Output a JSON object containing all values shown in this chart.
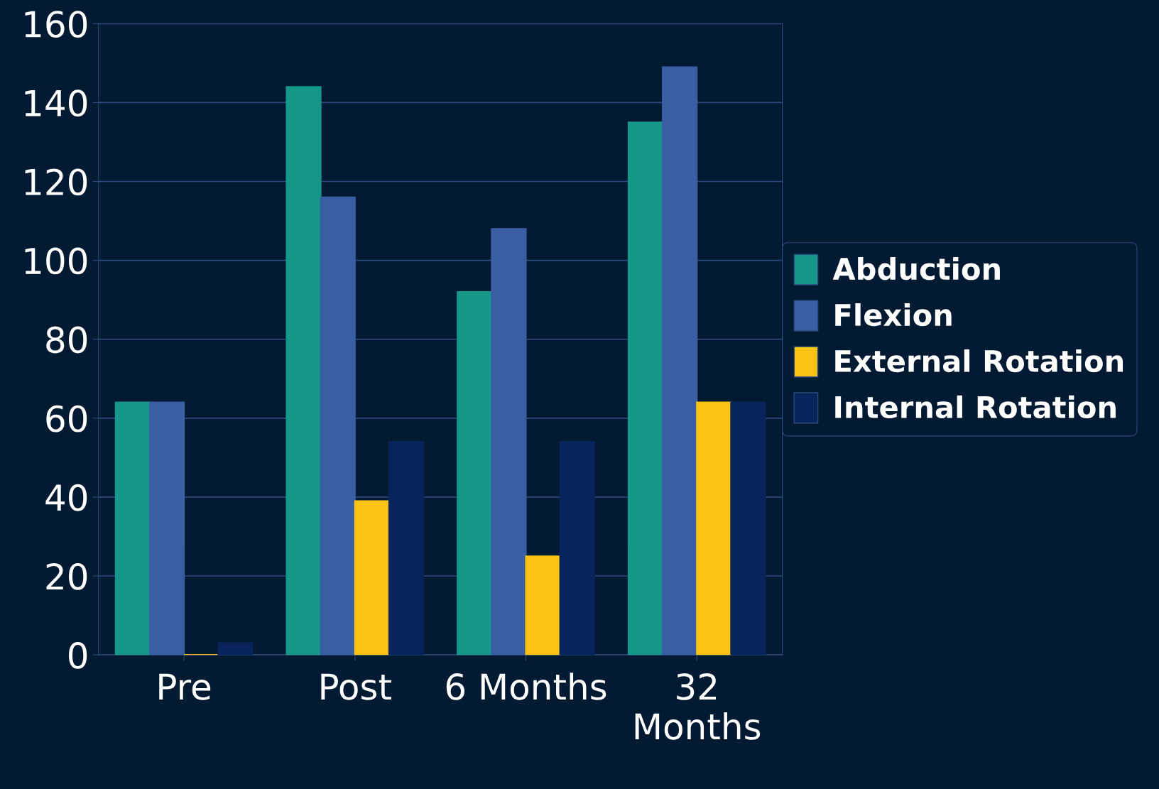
{
  "chart_data": {
    "type": "bar",
    "categories": [
      "Pre",
      "Post",
      "6 Months",
      "32\nMonths"
    ],
    "series": [
      {
        "name": "Abduction",
        "color": "#15978a",
        "values": [
          64,
          144,
          92,
          135
        ]
      },
      {
        "name": "Flexion",
        "color": "#3a5ea3",
        "values": [
          64,
          116,
          108,
          149
        ]
      },
      {
        "name": "External Rotation",
        "color": "#fcc314",
        "values": [
          0,
          39,
          25,
          64
        ]
      },
      {
        "name": "Internal Rotation",
        "color": "#08245a",
        "values": [
          3,
          54,
          54,
          64
        ]
      }
    ],
    "ylim": [
      0,
      160
    ],
    "yticks": [
      0,
      20,
      40,
      60,
      80,
      100,
      120,
      140,
      160
    ],
    "grid": "y",
    "legend": "right"
  }
}
